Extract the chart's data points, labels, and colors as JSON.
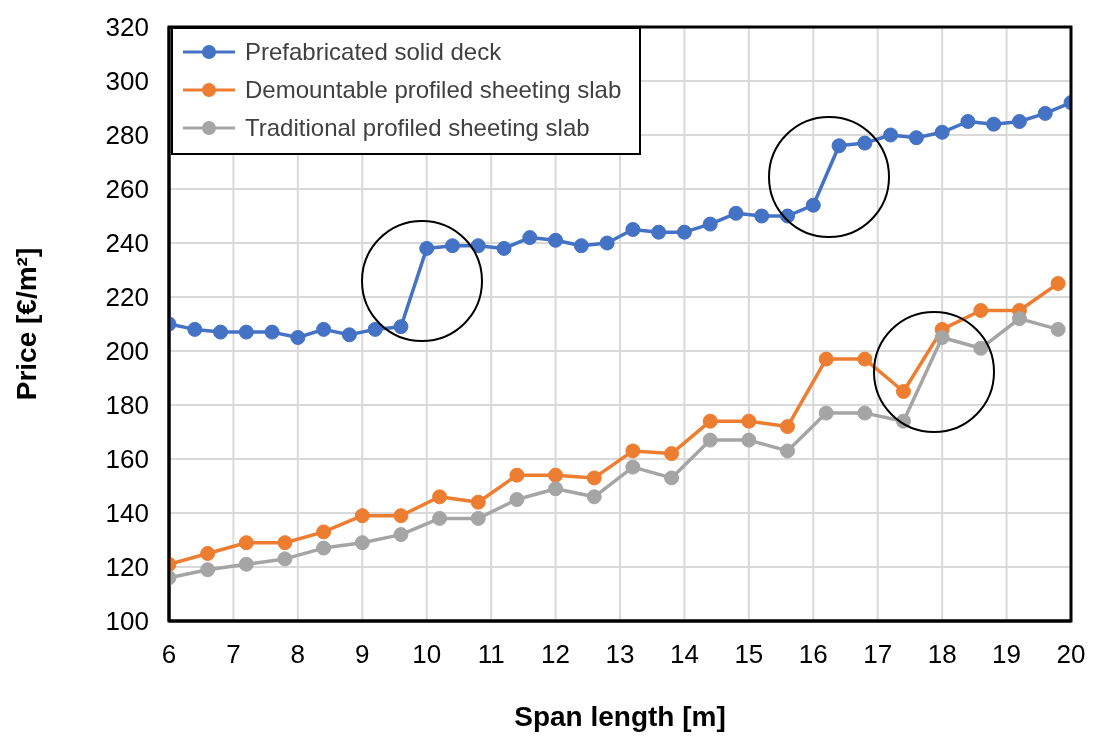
{
  "chart_data": {
    "type": "line",
    "xlabel": "Span length [m]",
    "ylabel": "Price [€/m²]",
    "xlim": [
      6,
      20
    ],
    "xticks": [
      6,
      7,
      8,
      9,
      10,
      11,
      12,
      13,
      14,
      15,
      16,
      17,
      18,
      19,
      20
    ],
    "ylim": [
      100,
      320
    ],
    "yticks": [
      100,
      120,
      140,
      160,
      180,
      200,
      220,
      240,
      260,
      280,
      300,
      320
    ],
    "grid": true,
    "legend": "top left",
    "marker": "circle",
    "line_style": "solid",
    "series": [
      {
        "name": "Prefabricated solid deck",
        "color": "#4472c4",
        "x": [
          6,
          6.4,
          6.8,
          7.2,
          7.6,
          8,
          8.4,
          8.8,
          9.2,
          9.6,
          10,
          10.4,
          10.8,
          11.2,
          11.6,
          12,
          12.4,
          12.8,
          13.2,
          13.6,
          14,
          14.4,
          14.8,
          15.2,
          15.6,
          16,
          16.4,
          16.8,
          17.2,
          17.6,
          18,
          18.4,
          18.8,
          19.2,
          19.6,
          20
        ],
        "values": [
          210,
          208,
          207,
          207,
          207,
          205,
          208,
          206,
          208,
          209,
          238,
          239,
          239,
          238,
          242,
          241,
          239,
          240,
          245,
          244,
          244,
          247,
          251,
          250,
          250,
          254,
          276,
          277,
          280,
          279,
          281,
          285,
          284,
          285,
          288,
          292
        ]
      },
      {
        "name": "Demountable profiled sheeting slab",
        "color": "#ed7d31",
        "x": [
          6,
          6.6,
          7.2,
          7.8,
          8.4,
          9,
          9.6,
          10.2,
          10.8,
          11.4,
          12,
          12.6,
          13.2,
          13.8,
          14.4,
          15,
          15.6,
          16.2,
          16.8,
          17.4,
          18,
          18.6,
          19.2,
          19.8
        ],
        "values": [
          121,
          125,
          129,
          129,
          133,
          139,
          139,
          146,
          144,
          154,
          154,
          153,
          163,
          162,
          174,
          174,
          172,
          197,
          197,
          185,
          208,
          215,
          215,
          225
        ]
      },
      {
        "name": "Traditional profiled sheeting slab",
        "color": "#a5a5a5",
        "x": [
          6,
          6.6,
          7.2,
          7.8,
          8.4,
          9,
          9.6,
          10.2,
          10.8,
          11.4,
          12,
          12.6,
          13.2,
          13.8,
          14.4,
          15,
          15.6,
          16.2,
          16.8,
          17.4,
          18,
          18.6,
          19.2,
          19.8
        ],
        "values": [
          116,
          119,
          121,
          123,
          127,
          129,
          132,
          138,
          138,
          145,
          149,
          146,
          157,
          153,
          167,
          167,
          163,
          177,
          177,
          174,
          205,
          201,
          212,
          208
        ]
      }
    ]
  }
}
